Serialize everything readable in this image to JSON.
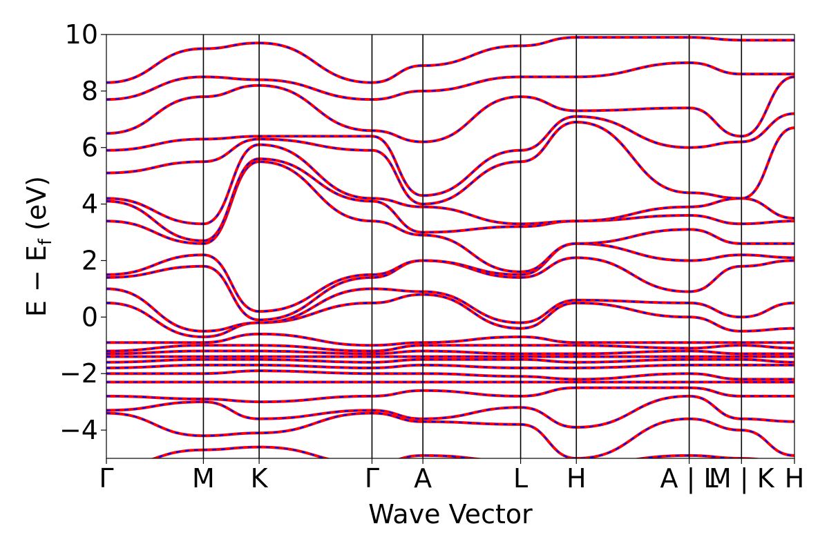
{
  "chart_data": {
    "type": "line",
    "xlabel": "Wave Vector",
    "ylabel": {
      "main": "E − E",
      "sub": "f",
      "unit": " (eV)"
    },
    "ylim": [
      -5,
      10
    ],
    "xlim": [
      0,
      1
    ],
    "yticks": [
      -4,
      -2,
      0,
      2,
      4,
      6,
      8,
      10
    ],
    "ytick_labels": [
      "−4",
      "−2",
      "0",
      "2",
      "4",
      "6",
      "8",
      "10"
    ],
    "kpoints": [
      {
        "label": "Γ",
        "x": 0.0
      },
      {
        "label": "M",
        "x": 0.141
      },
      {
        "label": "K",
        "x": 0.222
      },
      {
        "label": "Γ",
        "x": 0.386
      },
      {
        "label": "A",
        "x": 0.46
      },
      {
        "label": "L",
        "x": 0.602
      },
      {
        "label": "H",
        "x": 0.683
      },
      {
        "label": "A | L",
        "x": 0.847
      },
      {
        "label": "M | K",
        "x": 0.923
      },
      {
        "label": "H",
        "x": 1.0
      }
    ],
    "grid": false,
    "colors": {
      "series_a": "#ff0000",
      "series_b": "#0000ff",
      "segment_line": "#000000"
    },
    "line_styles": {
      "series_a": "solid",
      "series_b": "dashed"
    },
    "bands_x": [
      0,
      0.141,
      0.222,
      0.386,
      0.46,
      0.602,
      0.683,
      0.847,
      0.923,
      1.0
    ],
    "bands": [
      [
        -5.3,
        -4.7,
        -4.6,
        -5.2,
        -4.9,
        -5.1,
        -5.2,
        -4.9,
        -5.0,
        -5.2
      ],
      [
        -3.4,
        -4.2,
        -4.1,
        -3.4,
        -3.7,
        -3.8,
        -5.0,
        -3.6,
        -4.0,
        -4.9
      ],
      [
        -3.3,
        -3.0,
        -3.6,
        -3.3,
        -3.6,
        -3.2,
        -3.9,
        -2.8,
        -3.6,
        -3.7
      ],
      [
        -2.8,
        -2.9,
        -3.0,
        -2.8,
        -2.6,
        -2.8,
        -2.5,
        -2.5,
        -2.8,
        -2.8
      ],
      [
        -2.3,
        -2.3,
        -2.3,
        -2.3,
        -2.3,
        -2.3,
        -2.3,
        -2.3,
        -2.3,
        -2.3
      ],
      [
        -2.0,
        -2.0,
        -1.9,
        -2.0,
        -2.0,
        -2.1,
        -2.2,
        -2.0,
        -2.2,
        -2.2
      ],
      [
        -1.8,
        -1.7,
        -1.7,
        -1.8,
        -1.7,
        -1.8,
        -1.8,
        -1.7,
        -1.7,
        -1.7
      ],
      [
        -1.6,
        -1.5,
        -1.5,
        -1.6,
        -1.5,
        -1.5,
        -1.6,
        -1.5,
        -1.5,
        -1.6
      ],
      [
        -1.4,
        -1.4,
        -1.4,
        -1.4,
        -1.4,
        -1.4,
        -1.4,
        -1.4,
        -1.4,
        -1.4
      ],
      [
        -1.3,
        -1.2,
        -1.2,
        -1.3,
        -1.2,
        -1.3,
        -1.3,
        -1.2,
        -1.3,
        -1.3
      ],
      [
        -1.2,
        -1.0,
        -1.0,
        -1.2,
        -1.0,
        -1.0,
        -1.0,
        -1.1,
        -1.0,
        -1.1
      ],
      [
        -0.9,
        -0.9,
        -0.6,
        -1.0,
        -0.9,
        -0.7,
        -0.9,
        -0.9,
        -0.9,
        -0.9
      ],
      [
        0.5,
        -0.7,
        -0.2,
        0.5,
        0.8,
        -0.4,
        0.5,
        0.0,
        -0.5,
        -0.4
      ],
      [
        1.0,
        -0.5,
        -0.2,
        1.0,
        0.9,
        -0.2,
        0.6,
        0.5,
        0.0,
        0.5
      ],
      [
        1.4,
        1.8,
        -0.1,
        1.4,
        2.0,
        1.4,
        2.1,
        0.9,
        1.8,
        2.0
      ],
      [
        1.5,
        2.2,
        0.2,
        1.5,
        2.0,
        1.5,
        2.6,
        2.0,
        2.2,
        2.1
      ],
      [
        3.4,
        2.6,
        5.5,
        3.4,
        2.9,
        1.6,
        2.6,
        3.1,
        2.6,
        2.6
      ],
      [
        4.1,
        2.7,
        5.6,
        4.1,
        3.0,
        3.2,
        3.4,
        3.6,
        3.3,
        3.4
      ],
      [
        4.2,
        3.3,
        6.1,
        4.2,
        3.9,
        3.3,
        3.4,
        3.9,
        4.2,
        3.5
      ],
      [
        5.1,
        5.5,
        6.3,
        5.9,
        4.0,
        5.5,
        6.9,
        4.4,
        4.2,
        6.7
      ],
      [
        5.9,
        6.3,
        6.4,
        6.4,
        4.3,
        5.9,
        7.1,
        6.0,
        6.2,
        7.2
      ],
      [
        6.5,
        7.8,
        8.2,
        6.6,
        6.2,
        7.8,
        7.3,
        7.4,
        6.4,
        8.5
      ],
      [
        7.7,
        8.5,
        8.4,
        7.7,
        8.0,
        8.5,
        8.5,
        9.0,
        8.6,
        8.6
      ],
      [
        8.3,
        9.5,
        9.7,
        8.3,
        8.9,
        9.6,
        9.9,
        9.9,
        9.8,
        9.8
      ]
    ]
  }
}
